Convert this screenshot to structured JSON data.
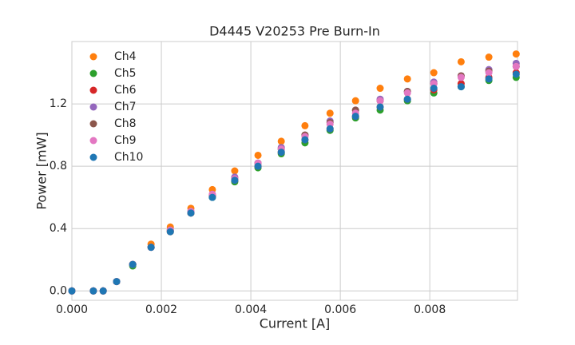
{
  "chart_data": {
    "type": "scatter",
    "title": "D4445 V20253 Pre Burn-In",
    "x_label": "Current [A]",
    "y_label": "Power [mW]",
    "x": [
      0,
      0.00048,
      0.0007,
      0.001,
      0.00136,
      0.00177,
      0.0022,
      0.00266,
      0.00314,
      0.00364,
      0.00416,
      0.00468,
      0.00521,
      0.00577,
      0.00634,
      0.00689,
      0.0075,
      0.00809,
      0.0087,
      0.00932,
      0.00993
    ],
    "series": [
      {
        "name": "Ch4",
        "color": "#ff7f0e",
        "values": [
          0,
          0,
          0,
          0.06,
          0.17,
          0.3,
          0.41,
          0.53,
          0.65,
          0.77,
          0.87,
          0.96,
          1.06,
          1.14,
          1.22,
          1.3,
          1.36,
          1.4,
          1.47,
          1.5,
          1.52
        ]
      },
      {
        "name": "Ch5",
        "color": "#2ca02c",
        "values": [
          0,
          0,
          0,
          0.06,
          0.16,
          0.28,
          0.38,
          0.5,
          0.6,
          0.7,
          0.79,
          0.88,
          0.95,
          1.03,
          1.11,
          1.16,
          1.22,
          1.27,
          1.31,
          1.35,
          1.37
        ]
      },
      {
        "name": "Ch6",
        "color": "#d62728",
        "values": [
          0,
          0,
          0,
          0.06,
          0.17,
          0.28,
          0.38,
          0.5,
          0.61,
          0.71,
          0.8,
          0.89,
          0.97,
          1.04,
          1.12,
          1.18,
          1.23,
          1.29,
          1.33,
          1.37,
          1.4
        ]
      },
      {
        "name": "Ch7",
        "color": "#9467bd",
        "values": [
          0,
          0,
          0,
          0.06,
          0.17,
          0.28,
          0.39,
          0.51,
          0.62,
          0.73,
          0.82,
          0.92,
          1.0,
          1.09,
          1.16,
          1.23,
          1.28,
          1.34,
          1.38,
          1.42,
          1.46
        ]
      },
      {
        "name": "Ch8",
        "color": "#8c564b",
        "values": [
          0,
          0,
          0,
          0.06,
          0.17,
          0.28,
          0.39,
          0.5,
          0.61,
          0.72,
          0.82,
          0.91,
          1.0,
          1.08,
          1.16,
          1.22,
          1.28,
          1.33,
          1.38,
          1.41,
          1.44
        ]
      },
      {
        "name": "Ch9",
        "color": "#e377c2",
        "values": [
          0,
          0,
          0,
          0.06,
          0.17,
          0.28,
          0.39,
          0.51,
          0.62,
          0.72,
          0.82,
          0.91,
          0.99,
          1.07,
          1.14,
          1.22,
          1.27,
          1.33,
          1.37,
          1.4,
          1.44
        ]
      },
      {
        "name": "Ch10",
        "color": "#1f77b4",
        "values": [
          0,
          0,
          0,
          0.06,
          0.17,
          0.28,
          0.38,
          0.5,
          0.6,
          0.71,
          0.8,
          0.89,
          0.97,
          1.04,
          1.12,
          1.18,
          1.23,
          1.3,
          1.31,
          1.36,
          1.39
        ]
      }
    ],
    "xlim": [
      0,
      0.00996
    ],
    "ylim": [
      -0.06,
      1.6
    ],
    "xticks": [
      {
        "value": 0,
        "label": "0.000"
      },
      {
        "value": 0.002,
        "label": "0.002"
      },
      {
        "value": 0.004,
        "label": "0.004"
      },
      {
        "value": 0.006,
        "label": "0.006"
      },
      {
        "value": 0.008,
        "label": "0.008"
      }
    ],
    "yticks": [
      {
        "value": 0,
        "label": "0.0"
      },
      0.4,
      0.8,
      1.2
    ],
    "grid": true,
    "legend": "upper-left"
  }
}
